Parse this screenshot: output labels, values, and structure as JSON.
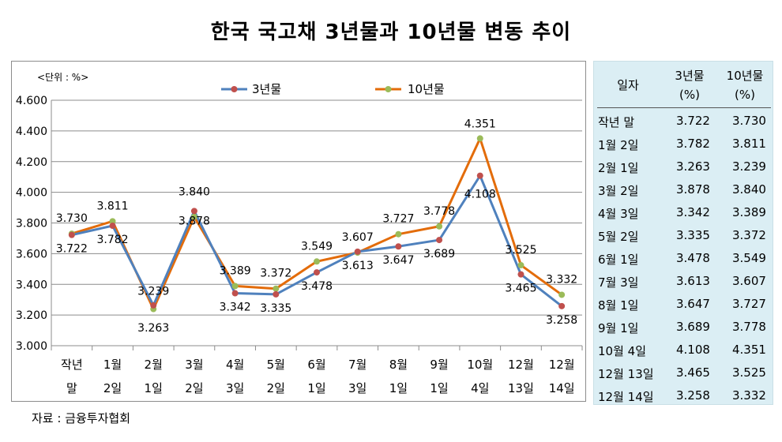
{
  "title": "한국 국고채 3년물과 10년물 변동 추이",
  "source": "자료 : 금융투자협회",
  "colors": {
    "series_3y": "#4f81bd",
    "series_3y_marker": "#c0504d",
    "series_10y": "#e36c0a",
    "series_10y_marker": "#9bbb59"
  },
  "chart_data": {
    "type": "line",
    "unit_label": "<단위 : %>",
    "categories": [
      [
        "작년",
        "말"
      ],
      [
        "1월",
        "2일"
      ],
      [
        "2월",
        "1일"
      ],
      [
        "3월",
        "2일"
      ],
      [
        "4월",
        "3일"
      ],
      [
        "5월",
        "2일"
      ],
      [
        "6월",
        "1일"
      ],
      [
        "7월",
        "3일"
      ],
      [
        "8월",
        "1일"
      ],
      [
        "9월",
        "1일"
      ],
      [
        "10월",
        "4일"
      ],
      [
        "12월",
        "13일"
      ],
      [
        "12월",
        "14일"
      ]
    ],
    "series": [
      {
        "name": "3년물",
        "values": [
          3.722,
          3.782,
          3.263,
          3.878,
          3.342,
          3.335,
          3.478,
          3.613,
          3.647,
          3.689,
          4.108,
          3.465,
          3.258
        ]
      },
      {
        "name": "10년물",
        "values": [
          3.73,
          3.811,
          3.239,
          3.84,
          3.389,
          3.372,
          3.549,
          3.607,
          3.727,
          3.778,
          4.351,
          3.525,
          3.332
        ]
      }
    ],
    "data_labels": [
      {
        "series": 0,
        "text": [
          "3.722",
          "3.782",
          "3.263",
          "3.878",
          "3.342",
          "3.335",
          "3.478",
          "3.613",
          "3.647",
          "3.689",
          "4.108",
          "3.465",
          "3.258"
        ]
      },
      {
        "series": 1,
        "text": [
          "3.730",
          "3.811",
          "3.239",
          "3.840",
          "3.389",
          "3.372",
          "3.549",
          "3.607",
          "3.727",
          "3.778",
          "4.351",
          "3.525",
          "3.332"
        ]
      }
    ],
    "y_ticks": [
      "4.600",
      "4.400",
      "4.200",
      "4.000",
      "3.800",
      "3.600",
      "3.400",
      "3.200",
      "3.000"
    ],
    "ylim": [
      3.0,
      4.6
    ],
    "grid": true,
    "legend_position": "top"
  },
  "table": {
    "headers": {
      "date": "일자",
      "y3": "3년물",
      "y3_unit": "(%)",
      "y10": "10년물",
      "y10_unit": "(%)"
    },
    "rows": [
      {
        "date": "작년 말",
        "y3": "3.722",
        "y10": "3.730"
      },
      {
        "date": "1월  2일",
        "y3": "3.782",
        "y10": "3.811"
      },
      {
        "date": "2월  1일",
        "y3": "3.263",
        "y10": "3.239"
      },
      {
        "date": "3월  2일",
        "y3": "3.878",
        "y10": "3.840"
      },
      {
        "date": "4월  3일",
        "y3": "3.342",
        "y10": "3.389"
      },
      {
        "date": "5월  2일",
        "y3": "3.335",
        "y10": "3.372"
      },
      {
        "date": "6월  1일",
        "y3": "3.478",
        "y10": "3.549"
      },
      {
        "date": "7월  3일",
        "y3": "3.613",
        "y10": "3.607"
      },
      {
        "date": "8월  1일",
        "y3": "3.647",
        "y10": "3.727"
      },
      {
        "date": "9월 1일",
        "y3": "3.689",
        "y10": "3.778"
      },
      {
        "date": "10월 4일",
        "y3": "4.108",
        "y10": "4.351"
      },
      {
        "date": "12월 13일",
        "y3": "3.465",
        "y10": "3.525"
      },
      {
        "date": "12월 14일",
        "y3": "3.258",
        "y10": "3.332"
      }
    ]
  }
}
